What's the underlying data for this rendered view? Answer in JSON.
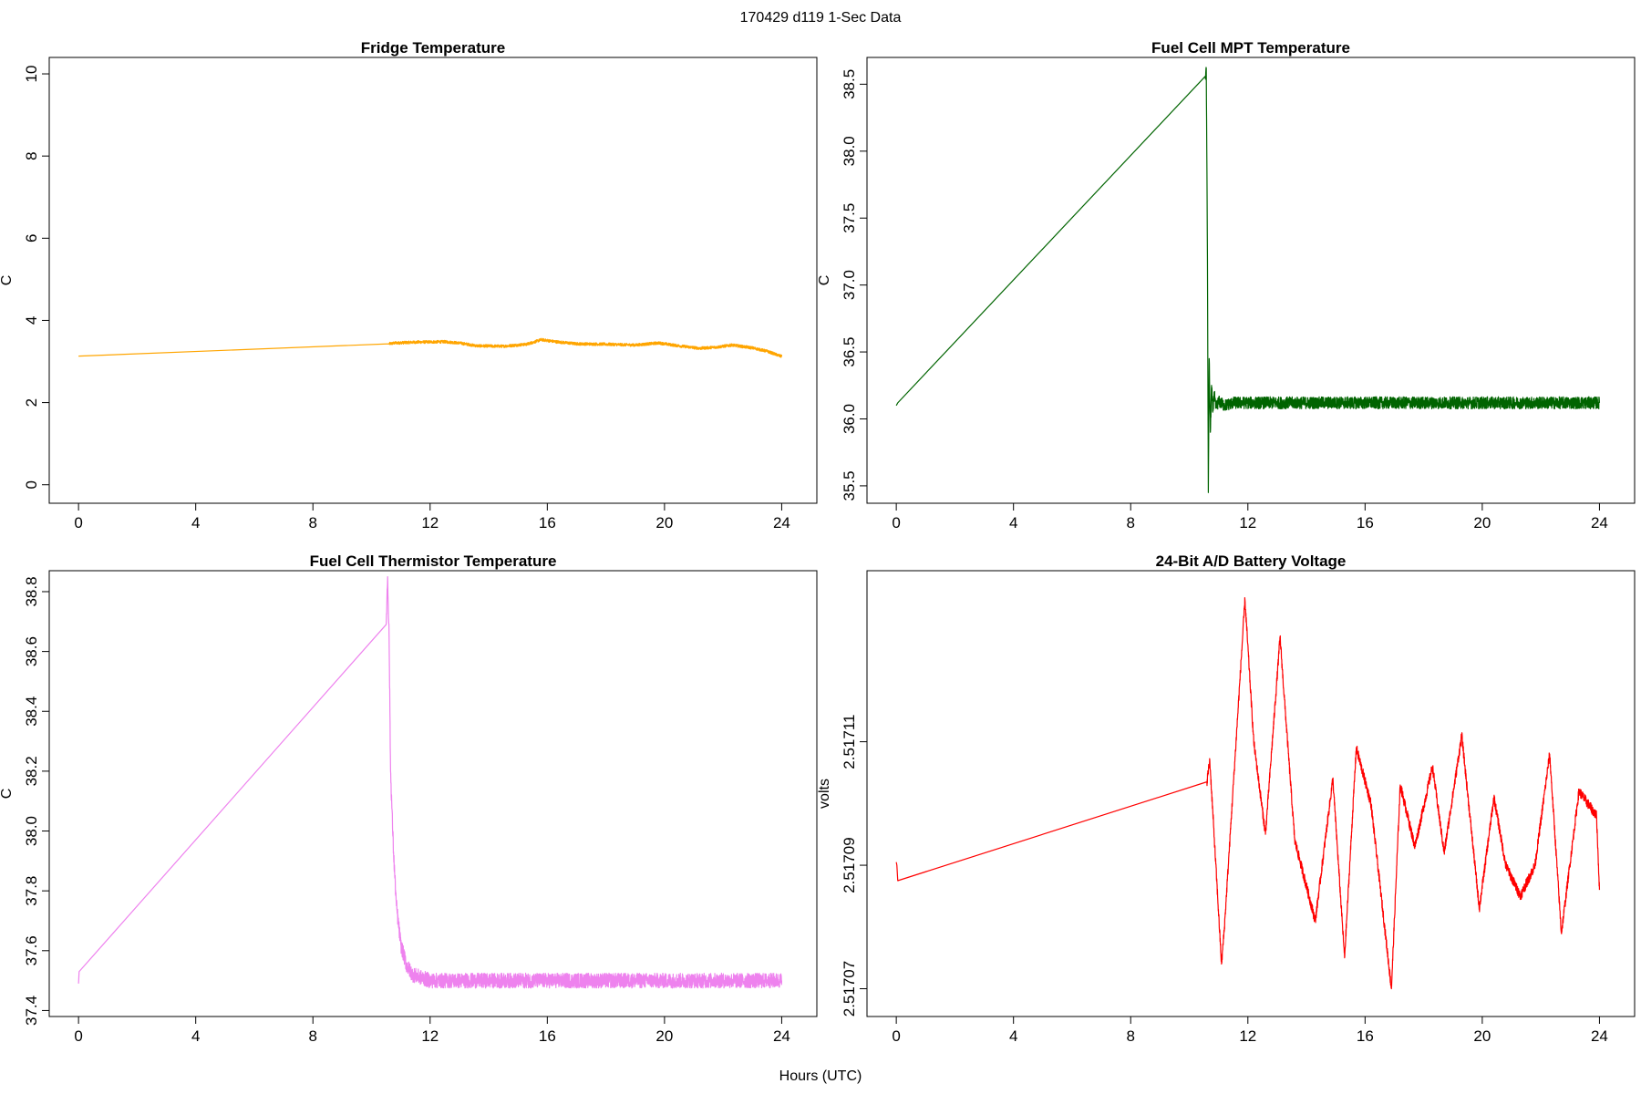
{
  "figure": {
    "title": "170429   d119   1-Sec Data",
    "xlabel": "Hours (UTC)"
  },
  "chart_data": [
    {
      "type": "line",
      "title": "Fridge Temperature",
      "xlabel": "Hours (UTC)",
      "ylabel": "C",
      "xlim": [
        -1,
        25.2
      ],
      "ylim": [
        -0.45,
        10.4
      ],
      "xticks": [
        0,
        4,
        8,
        12,
        16,
        20,
        24
      ],
      "yticks": [
        0,
        2,
        4,
        6,
        8,
        10
      ],
      "ytick_labels": [
        "0",
        "2",
        "4",
        "6",
        "8",
        "10"
      ],
      "color": "#FFA500",
      "noise": 0.035,
      "x": [
        0,
        10.6,
        10.8,
        11.5,
        12.5,
        13.0,
        13.6,
        14.5,
        15.3,
        15.8,
        16.3,
        17.0,
        18.0,
        19.0,
        19.8,
        20.5,
        21.2,
        21.8,
        22.3,
        23.0,
        23.5,
        24
      ],
      "y": [
        3.13,
        3.43,
        3.45,
        3.47,
        3.48,
        3.45,
        3.38,
        3.37,
        3.42,
        3.53,
        3.48,
        3.43,
        3.42,
        3.4,
        3.45,
        3.38,
        3.32,
        3.35,
        3.4,
        3.33,
        3.25,
        3.12
      ]
    },
    {
      "type": "line",
      "title": "Fuel Cell MPT Temperature",
      "xlabel": "Hours (UTC)",
      "ylabel": "C",
      "xlim": [
        -1,
        25.2
      ],
      "ylim": [
        35.37,
        38.7
      ],
      "xticks": [
        0,
        4,
        8,
        12,
        16,
        20,
        24
      ],
      "yticks": [
        35.5,
        36.0,
        36.5,
        37.0,
        37.5,
        38.0,
        38.5
      ],
      "ytick_labels": [
        "35.5",
        "36.0",
        "36.5",
        "37.0",
        "37.5",
        "38.0",
        "38.5"
      ],
      "color": "#006400",
      "noise": 0.045,
      "x": [
        0,
        0.05,
        10.55,
        10.58,
        10.62,
        10.65,
        10.68,
        10.72,
        10.76,
        10.8,
        10.85,
        10.9,
        11.0,
        11.2,
        11.5,
        12,
        24
      ],
      "y": [
        36.1,
        36.12,
        38.56,
        38.62,
        37.2,
        35.45,
        36.45,
        35.9,
        36.25,
        36.05,
        36.2,
        36.08,
        36.13,
        36.1,
        36.12,
        36.12,
        36.12
      ]
    },
    {
      "type": "line",
      "title": "Fuel Cell Thermistor Temperature",
      "xlabel": "Hours (UTC)",
      "ylabel": "C",
      "xlim": [
        -1,
        25.2
      ],
      "ylim": [
        37.38,
        38.87
      ],
      "xticks": [
        0,
        4,
        8,
        12,
        16,
        20,
        24
      ],
      "yticks": [
        37.4,
        37.6,
        37.8,
        38.0,
        38.2,
        38.4,
        38.6,
        38.8
      ],
      "ytick_labels": [
        "37.4",
        "37.6",
        "37.8",
        "38.0",
        "38.2",
        "38.4",
        "38.6",
        "38.8"
      ],
      "color": "#EE82EE",
      "noise": 0.025,
      "x": [
        0,
        0.02,
        10.5,
        10.55,
        10.6,
        10.65,
        10.75,
        10.85,
        11.0,
        11.2,
        11.4,
        11.7,
        12,
        24
      ],
      "y": [
        37.49,
        37.53,
        38.69,
        38.85,
        38.65,
        38.2,
        37.93,
        37.75,
        37.62,
        37.55,
        37.52,
        37.51,
        37.5,
        37.5
      ]
    },
    {
      "type": "line",
      "title": "24-Bit A/D Battery Voltage",
      "xlabel": "Hours (UTC)",
      "ylabel": "volts",
      "xlim": [
        -1,
        25.2
      ],
      "ylim": [
        2.5170655,
        2.5171377
      ],
      "xticks": [
        0,
        4,
        8,
        12,
        16,
        20,
        24
      ],
      "yticks": [
        2.51707,
        2.51709,
        2.51711
      ],
      "ytick_labels": [
        "2.51707",
        "2.51709",
        "2.51711"
      ],
      "color": "#FF0000",
      "noise": 8e-07,
      "x": [
        0,
        0.02,
        0.05,
        10.6,
        10.7,
        11.1,
        11.2,
        11.9,
        12.2,
        12.6,
        13.1,
        13.2,
        13.6,
        14.3,
        14.9,
        15.3,
        15.7,
        16.2,
        16.9,
        17.2,
        17.7,
        18.3,
        18.7,
        19.3,
        19.9,
        20.4,
        20.8,
        21.3,
        21.8,
        22.3,
        22.7,
        23.3,
        23.9,
        24
      ],
      "y": [
        2.5170905,
        2.51709,
        2.5170875,
        2.5171035,
        2.517107,
        2.517074,
        2.51708,
        2.517133,
        2.51711,
        2.517095,
        2.517127,
        2.51712,
        2.517094,
        2.517081,
        2.517104,
        2.517075,
        2.517109,
        2.5171,
        2.51707,
        2.517103,
        2.517093,
        2.517106,
        2.517092,
        2.517111,
        2.517083,
        2.517101,
        2.51709,
        2.517085,
        2.51709,
        2.517108,
        2.517079,
        2.517102,
        2.517098,
        2.517086
      ]
    }
  ]
}
